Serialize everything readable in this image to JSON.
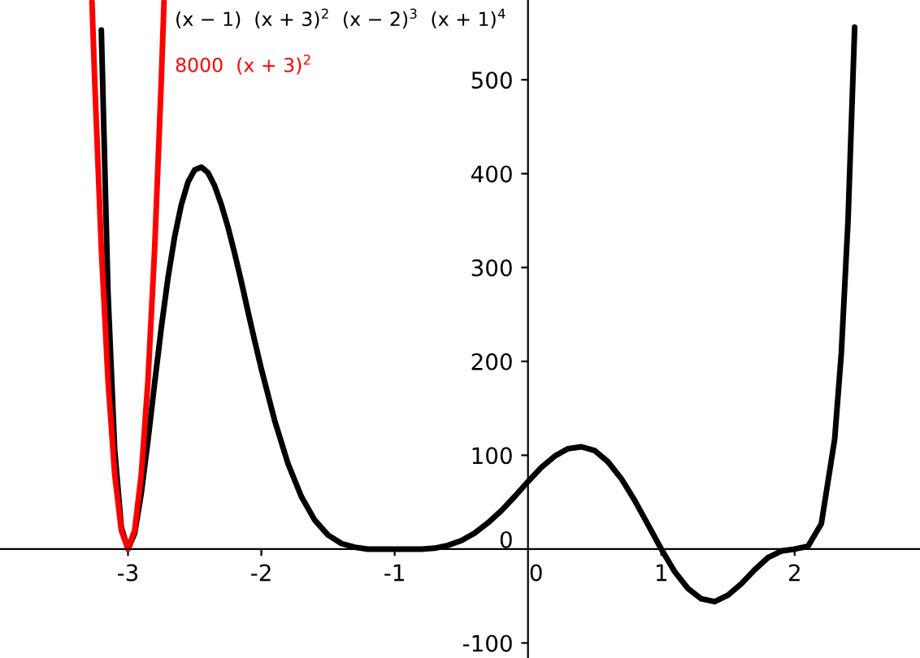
{
  "chart_data": {
    "type": "line",
    "xlim": [
      -3.96,
      2.94
    ],
    "ylim": [
      -116,
      585
    ],
    "xticks": [
      -3,
      -2,
      -1,
      0,
      1,
      2
    ],
    "yticks": [
      -100,
      0,
      100,
      200,
      300,
      400,
      500
    ],
    "grid": false,
    "legend": false,
    "marker": "none",
    "line_style": "solid",
    "series": [
      {
        "name": "(x − 1)  (x + 3)$^{2}$  (x − 2)$^{3}$  (x + 1)$^{4}$",
        "color": "#000000",
        "x": [
          -3.2,
          -3.15,
          -3.1,
          -3.05,
          -3,
          -2.95,
          -2.9,
          -2.85,
          -2.8,
          -2.75,
          -2.7,
          -2.65,
          -2.6,
          -2.55,
          -2.5,
          -2.45,
          -2.4,
          -2.35,
          -2.3,
          -2.25,
          -2.2,
          -2.15,
          -2.1,
          -2.05,
          -2,
          -1.9,
          -1.8,
          -1.7,
          -1.6,
          -1.5,
          -1.4,
          -1.3,
          -1.2,
          -1.1,
          -1,
          -0.9,
          -0.8,
          -0.7,
          -0.6,
          -0.5,
          -0.4,
          -0.3,
          -0.2,
          -0.1,
          0,
          0.1,
          0.2,
          0.3,
          0.4,
          0.5,
          0.6,
          0.7,
          0.8,
          0.9,
          1,
          1.1,
          1.2,
          1.3,
          1.4,
          1.5,
          1.6,
          1.7,
          1.8,
          1.9,
          2,
          2.1,
          2.2,
          2.3,
          2.35,
          2.4,
          2.45
        ],
        "values": [
          553,
          273,
          106,
          23,
          0,
          17,
          60,
          116,
          177,
          236,
          289,
          333,
          367,
          391,
          404,
          407,
          401,
          387,
          367,
          343,
          315,
          285,
          253,
          222,
          192,
          137,
          91,
          56,
          31,
          15,
          6,
          2,
          0,
          0,
          0,
          0,
          0,
          1,
          4,
          9,
          17,
          28,
          41,
          56,
          72,
          87,
          99,
          107,
          109,
          105,
          93,
          75,
          52,
          26,
          0,
          -24,
          -42,
          -53,
          -56,
          -49,
          -37,
          -22,
          -9,
          -2,
          0,
          3,
          27,
          117,
          209,
          349,
          556
        ]
      },
      {
        "name": "8000  (x + 3)$^{2}$",
        "color": "#ff0000",
        "x": [
          -3.27,
          -3.25,
          -3.2,
          -3.15,
          -3.1,
          -3.05,
          -3,
          -2.95,
          -2.9,
          -2.85,
          -2.8,
          -2.75,
          -2.73
        ],
        "values": [
          583,
          500,
          320,
          180,
          80,
          20,
          0,
          20,
          80,
          180,
          320,
          500,
          583
        ]
      }
    ]
  }
}
